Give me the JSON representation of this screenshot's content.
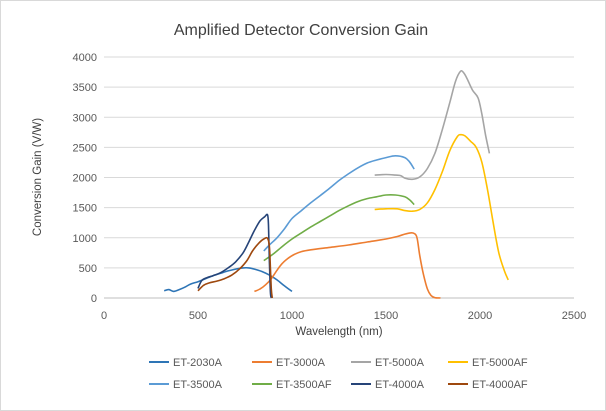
{
  "chart_data": {
    "type": "line",
    "title": "Amplified Detector Conversion Gain",
    "xlabel": "Wavelength (nm)",
    "ylabel": "Conversion Gain (V/W)",
    "xlim": [
      0,
      2500
    ],
    "ylim": [
      0,
      4000
    ],
    "x_ticks": [
      0,
      500,
      1000,
      1500,
      2000,
      2500
    ],
    "y_ticks": [
      0,
      500,
      1000,
      1500,
      2000,
      2500,
      3000,
      3500,
      4000
    ],
    "x_tick_labels": [
      "0",
      "500",
      "1000",
      "1500",
      "2000",
      "2500"
    ],
    "y_tick_labels": [
      "0",
      "500",
      "1000",
      "1500",
      "2000",
      "2500",
      "3000",
      "3500",
      "4000"
    ],
    "grid": "horizontal",
    "legend_position": "bottom",
    "series": [
      {
        "name": "ET-2030A",
        "color": "#2e75b6",
        "points": [
          [
            320,
            120
          ],
          [
            345,
            140
          ],
          [
            370,
            110
          ],
          [
            400,
            140
          ],
          [
            430,
            180
          ],
          [
            460,
            230
          ],
          [
            500,
            270
          ],
          [
            540,
            320
          ],
          [
            580,
            370
          ],
          [
            620,
            410
          ],
          [
            660,
            450
          ],
          [
            700,
            480
          ],
          [
            740,
            500
          ],
          [
            770,
            500
          ],
          [
            800,
            480
          ],
          [
            840,
            440
          ],
          [
            880,
            380
          ],
          [
            920,
            300
          ],
          [
            960,
            200
          ],
          [
            1000,
            110
          ]
        ]
      },
      {
        "name": "ET-3000A",
        "color": "#ed7d31",
        "points": [
          [
            800,
            110
          ],
          [
            830,
            150
          ],
          [
            860,
            220
          ],
          [
            890,
            320
          ],
          [
            920,
            460
          ],
          [
            950,
            580
          ],
          [
            980,
            660
          ],
          [
            1010,
            720
          ],
          [
            1050,
            770
          ],
          [
            1100,
            800
          ],
          [
            1200,
            840
          ],
          [
            1300,
            880
          ],
          [
            1400,
            930
          ],
          [
            1500,
            980
          ],
          [
            1560,
            1020
          ],
          [
            1600,
            1060
          ],
          [
            1630,
            1080
          ],
          [
            1650,
            1070
          ],
          [
            1665,
            1000
          ],
          [
            1680,
            700
          ],
          [
            1700,
            380
          ],
          [
            1720,
            150
          ],
          [
            1740,
            40
          ],
          [
            1760,
            5
          ],
          [
            1790,
            0
          ]
        ]
      },
      {
        "name": "ET-5000A",
        "color": "#a5a5a5",
        "points": [
          [
            1440,
            2040
          ],
          [
            1500,
            2050
          ],
          [
            1550,
            2040
          ],
          [
            1580,
            2030
          ],
          [
            1600,
            1990
          ],
          [
            1640,
            1970
          ],
          [
            1680,
            2010
          ],
          [
            1720,
            2150
          ],
          [
            1760,
            2400
          ],
          [
            1800,
            2800
          ],
          [
            1840,
            3250
          ],
          [
            1870,
            3600
          ],
          [
            1895,
            3760
          ],
          [
            1910,
            3750
          ],
          [
            1930,
            3650
          ],
          [
            1960,
            3450
          ],
          [
            1990,
            3320
          ],
          [
            2010,
            3050
          ],
          [
            2030,
            2700
          ],
          [
            2050,
            2400
          ]
        ]
      },
      {
        "name": "ET-5000AF",
        "color": "#ffc000",
        "points": [
          [
            1440,
            1470
          ],
          [
            1500,
            1480
          ],
          [
            1560,
            1480
          ],
          [
            1600,
            1450
          ],
          [
            1640,
            1440
          ],
          [
            1680,
            1470
          ],
          [
            1720,
            1580
          ],
          [
            1760,
            1800
          ],
          [
            1800,
            2100
          ],
          [
            1840,
            2450
          ],
          [
            1880,
            2680
          ],
          [
            1900,
            2710
          ],
          [
            1920,
            2690
          ],
          [
            1950,
            2600
          ],
          [
            1980,
            2500
          ],
          [
            2010,
            2250
          ],
          [
            2040,
            1800
          ],
          [
            2070,
            1250
          ],
          [
            2100,
            750
          ],
          [
            2130,
            450
          ],
          [
            2150,
            300
          ]
        ]
      },
      {
        "name": "ET-3500A",
        "color": "#5b9bd5",
        "points": [
          [
            850,
            780
          ],
          [
            880,
            880
          ],
          [
            920,
            1000
          ],
          [
            960,
            1150
          ],
          [
            1000,
            1320
          ],
          [
            1050,
            1450
          ],
          [
            1100,
            1580
          ],
          [
            1150,
            1700
          ],
          [
            1200,
            1820
          ],
          [
            1250,
            1950
          ],
          [
            1300,
            2060
          ],
          [
            1350,
            2160
          ],
          [
            1400,
            2240
          ],
          [
            1450,
            2290
          ],
          [
            1500,
            2330
          ],
          [
            1550,
            2360
          ],
          [
            1600,
            2330
          ],
          [
            1625,
            2260
          ],
          [
            1650,
            2140
          ]
        ]
      },
      {
        "name": "ET-3500AF",
        "color": "#70ad47",
        "points": [
          [
            850,
            620
          ],
          [
            900,
            730
          ],
          [
            950,
            860
          ],
          [
            1000,
            980
          ],
          [
            1050,
            1080
          ],
          [
            1100,
            1180
          ],
          [
            1150,
            1270
          ],
          [
            1200,
            1360
          ],
          [
            1250,
            1450
          ],
          [
            1300,
            1530
          ],
          [
            1350,
            1600
          ],
          [
            1400,
            1650
          ],
          [
            1450,
            1680
          ],
          [
            1500,
            1710
          ],
          [
            1550,
            1710
          ],
          [
            1600,
            1680
          ],
          [
            1625,
            1630
          ],
          [
            1650,
            1550
          ]
        ]
      },
      {
        "name": "ET-4000A",
        "color": "#264478",
        "points": [
          [
            500,
            160
          ],
          [
            520,
            290
          ],
          [
            550,
            340
          ],
          [
            580,
            370
          ],
          [
            620,
            420
          ],
          [
            660,
            500
          ],
          [
            700,
            600
          ],
          [
            740,
            750
          ],
          [
            770,
            930
          ],
          [
            800,
            1120
          ],
          [
            830,
            1280
          ],
          [
            855,
            1350
          ],
          [
            870,
            1380
          ],
          [
            875,
            1200
          ],
          [
            880,
            600
          ],
          [
            885,
            100
          ],
          [
            890,
            0
          ]
        ]
      },
      {
        "name": "ET-4000AF",
        "color": "#9e480e",
        "points": [
          [
            500,
            120
          ],
          [
            530,
            210
          ],
          [
            560,
            250
          ],
          [
            600,
            280
          ],
          [
            640,
            320
          ],
          [
            680,
            380
          ],
          [
            720,
            480
          ],
          [
            760,
            620
          ],
          [
            790,
            780
          ],
          [
            820,
            900
          ],
          [
            850,
            980
          ],
          [
            870,
            990
          ],
          [
            880,
            850
          ],
          [
            885,
            500
          ],
          [
            890,
            150
          ],
          [
            895,
            0
          ]
        ]
      }
    ]
  }
}
